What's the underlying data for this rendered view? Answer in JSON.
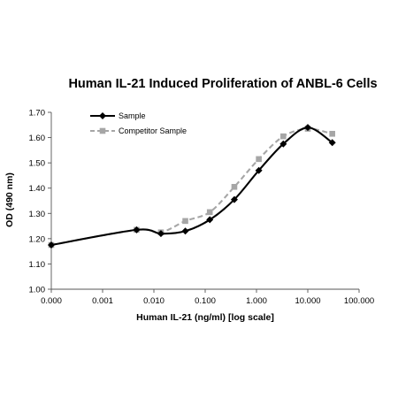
{
  "chart_data": {
    "type": "line",
    "title": "Human IL-21 Induced Proliferation of ANBL-6 Cells",
    "xlabel": "Human IL-21 (ng/ml) [log scale]",
    "ylabel": "OD (490 nm)",
    "x_scale": "log",
    "x_ticks": [
      0.0001,
      0.001,
      0.01,
      0.1,
      1,
      10,
      100
    ],
    "x_tick_labels": [
      "0.000",
      "0.001",
      "0.010",
      "0.100",
      "1.000",
      "10.000",
      "100.000"
    ],
    "ylim": [
      1.0,
      1.7
    ],
    "y_ticks": [
      1.0,
      1.1,
      1.2,
      1.3,
      1.4,
      1.5,
      1.6,
      1.7
    ],
    "y_tick_labels": [
      "1.00",
      "1.10",
      "1.20",
      "1.30",
      "1.40",
      "1.50",
      "1.60",
      "1.70"
    ],
    "grid": false,
    "legend_position": "top-left",
    "series": [
      {
        "name": "Sample",
        "color": "#000000",
        "line": "solid",
        "marker": "diamond",
        "x": [
          0.0001,
          0.0046,
          0.0137,
          0.041,
          0.123,
          0.37,
          1.11,
          3.33,
          10,
          30
        ],
        "y": [
          1.175,
          1.235,
          1.22,
          1.23,
          1.275,
          1.355,
          1.47,
          1.575,
          1.64,
          1.58
        ]
      },
      {
        "name": "Competitor Sample",
        "color": "#a6a6a6",
        "line": "dashed",
        "marker": "square",
        "x": [
          0.0001,
          0.0046,
          0.0137,
          0.041,
          0.123,
          0.37,
          1.11,
          3.33,
          10,
          30
        ],
        "y": [
          1.175,
          1.235,
          1.225,
          1.27,
          1.305,
          1.405,
          1.515,
          1.605,
          1.635,
          1.615
        ]
      }
    ]
  }
}
